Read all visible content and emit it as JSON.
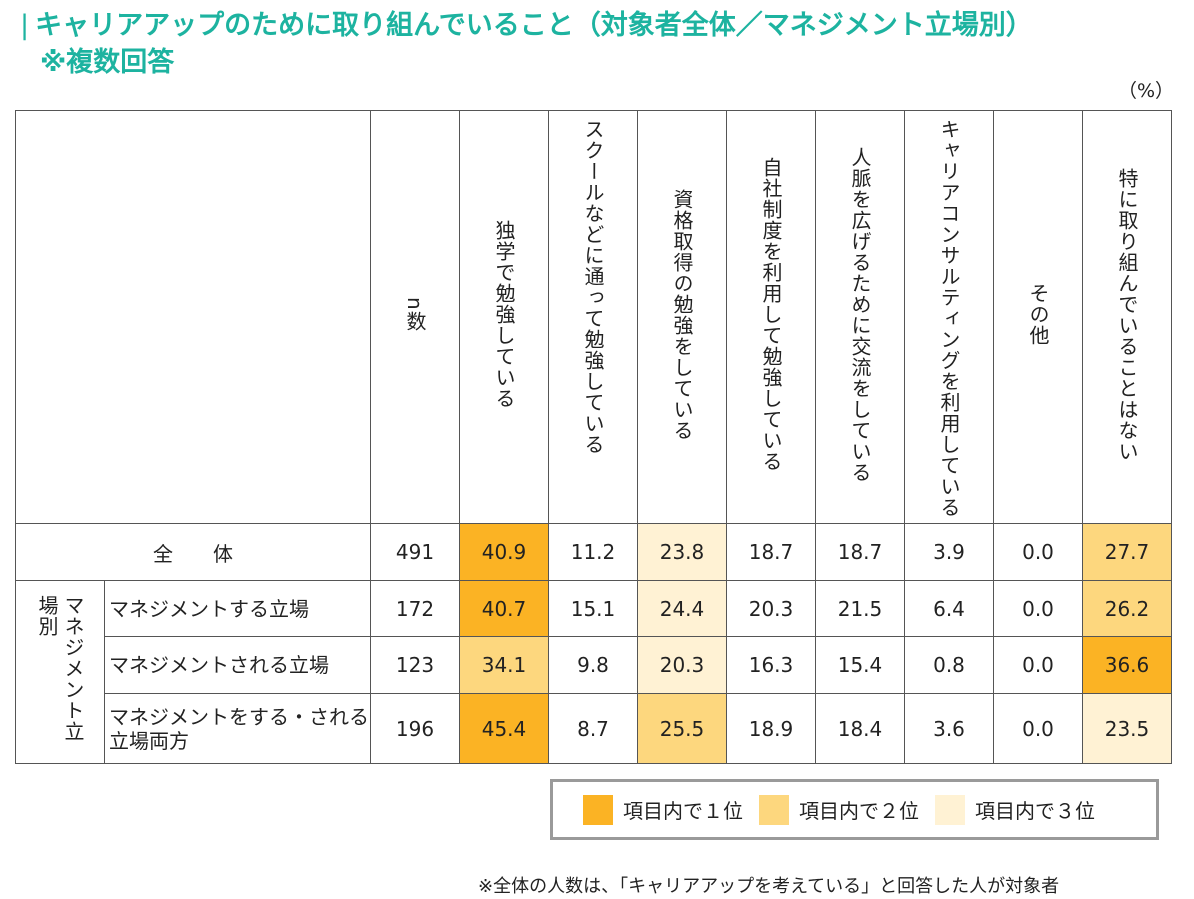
{
  "title": "キャリアアップのために取り組んでいること（対象者全体／マネジメント立場別）",
  "title_bar": "|",
  "subtitle": "※複数回答",
  "unit": "（%）",
  "colors": {
    "title": "#1db3a0",
    "rank1": "#fbb324",
    "rank2": "#fdd77e",
    "rank3": "#fff2d4"
  },
  "chart_data": {
    "type": "table",
    "n_header": "n数",
    "columns": [
      "独学で勉強している",
      "スクールなどに通って勉強している",
      "資格取得の勉強をしている",
      "自社制度を利用して勉強している",
      "人脈を広げるために交流をしている",
      "キャリアコンサルティングを利用している",
      "その他",
      "特に取り組んでいることはない"
    ],
    "total_row": {
      "label": "全　　体",
      "n": "491",
      "values": [
        "40.9",
        "11.2",
        "23.8",
        "18.7",
        "18.7",
        "3.9",
        "0.0",
        "27.7"
      ],
      "ranks": [
        1,
        0,
        3,
        0,
        0,
        0,
        0,
        2
      ]
    },
    "group": {
      "label": "マネジメント立場別",
      "rows": [
        {
          "label": "マネジメントする立場",
          "n": "172",
          "values": [
            "40.7",
            "15.1",
            "24.4",
            "20.3",
            "21.5",
            "6.4",
            "0.0",
            "26.2"
          ],
          "ranks": [
            1,
            0,
            3,
            0,
            0,
            0,
            0,
            2
          ]
        },
        {
          "label": "マネジメントされる立場",
          "n": "123",
          "values": [
            "34.1",
            "9.8",
            "20.3",
            "16.3",
            "15.4",
            "0.8",
            "0.0",
            "36.6"
          ],
          "ranks": [
            2,
            0,
            3,
            0,
            0,
            0,
            0,
            1
          ]
        },
        {
          "label": "マネジメントをする・される立場両方",
          "n": "196",
          "values": [
            "45.4",
            "8.7",
            "25.5",
            "18.9",
            "18.4",
            "3.6",
            "0.0",
            "23.5"
          ],
          "ranks": [
            1,
            0,
            2,
            0,
            0,
            0,
            0,
            3
          ]
        }
      ]
    }
  },
  "legend": [
    {
      "label": "項目内で１位",
      "rank": 1
    },
    {
      "label": "項目内で２位",
      "rank": 2
    },
    {
      "label": "項目内で３位",
      "rank": 3
    }
  ],
  "footnote": "※全体の人数は、「キャリアアップを考えている」と回答した人が対象者"
}
